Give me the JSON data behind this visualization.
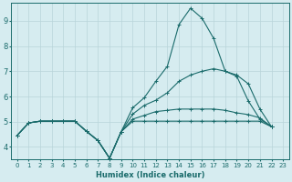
{
  "xlabel": "Humidex (Indice chaleur)",
  "background_color": "#d6ecf0",
  "grid_color": "#b8d4da",
  "line_color": "#1a6b6b",
  "xlim": [
    -0.5,
    23.5
  ],
  "ylim": [
    3.5,
    9.7
  ],
  "xticks": [
    0,
    1,
    2,
    3,
    4,
    5,
    6,
    7,
    8,
    9,
    10,
    11,
    12,
    13,
    14,
    15,
    16,
    17,
    18,
    19,
    20,
    21,
    22,
    23
  ],
  "yticks": [
    4,
    5,
    6,
    7,
    8,
    9
  ],
  "series": [
    {
      "x": [
        0,
        1,
        2,
        3,
        4,
        5,
        6,
        7,
        8,
        9,
        10,
        11,
        12,
        13,
        14,
        15,
        16,
        17,
        18,
        19,
        20,
        21,
        22
      ],
      "y": [
        4.45,
        4.95,
        5.02,
        5.02,
        5.02,
        5.02,
        4.62,
        4.25,
        3.55,
        4.6,
        5.55,
        5.95,
        6.6,
        7.2,
        8.85,
        9.5,
        9.1,
        8.3,
        7.0,
        6.8,
        5.82,
        5.1,
        4.8
      ]
    },
    {
      "x": [
        0,
        1,
        2,
        3,
        4,
        5,
        6,
        7,
        8,
        9,
        10,
        11,
        12,
        13,
        14,
        15,
        16,
        17,
        18,
        19,
        20,
        21,
        22
      ],
      "y": [
        4.45,
        4.95,
        5.02,
        5.02,
        5.02,
        5.02,
        4.62,
        4.25,
        3.55,
        4.6,
        5.3,
        5.65,
        5.85,
        6.15,
        6.6,
        6.85,
        7.0,
        7.1,
        7.0,
        6.85,
        6.5,
        5.5,
        4.8
      ]
    },
    {
      "x": [
        0,
        1,
        2,
        3,
        4,
        5,
        6,
        7,
        8,
        9,
        10,
        11,
        12,
        13,
        14,
        15,
        16,
        17,
        18,
        19,
        20,
        21,
        22
      ],
      "y": [
        4.45,
        4.95,
        5.02,
        5.02,
        5.02,
        5.02,
        4.62,
        4.25,
        3.55,
        4.6,
        5.1,
        5.25,
        5.4,
        5.45,
        5.5,
        5.5,
        5.5,
        5.5,
        5.45,
        5.35,
        5.28,
        5.15,
        4.8
      ]
    },
    {
      "x": [
        0,
        1,
        2,
        3,
        4,
        5,
        6,
        7,
        8,
        9,
        10,
        11,
        12,
        13,
        14,
        15,
        16,
        17,
        18,
        19,
        20,
        21,
        22
      ],
      "y": [
        4.45,
        4.95,
        5.02,
        5.02,
        5.02,
        5.02,
        4.62,
        4.25,
        3.55,
        4.6,
        5.02,
        5.02,
        5.02,
        5.02,
        5.02,
        5.02,
        5.02,
        5.02,
        5.02,
        5.02,
        5.02,
        5.02,
        4.8
      ]
    }
  ]
}
